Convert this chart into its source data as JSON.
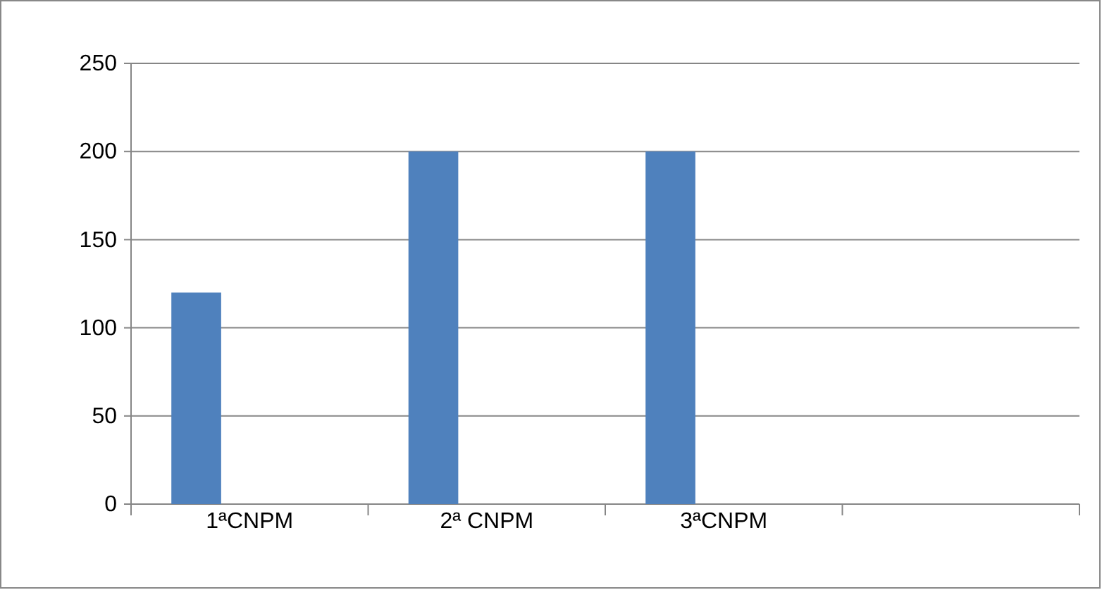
{
  "chart_data": {
    "type": "bar",
    "categories": [
      "1ªCNPM",
      "2ª CNPM",
      "3ªCNPM",
      null
    ],
    "values": [
      120,
      200,
      200,
      null
    ],
    "color": "#4f81bd",
    "ylim": [
      0,
      250
    ],
    "yticks": [
      0,
      50,
      100,
      150,
      200,
      250
    ],
    "grid": "y"
  }
}
